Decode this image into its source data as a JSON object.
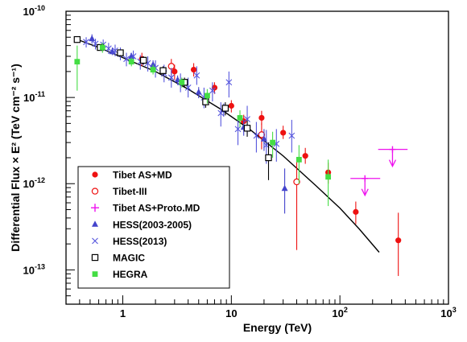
{
  "chart_data": {
    "type": "scatter",
    "xlabel": "Energy (TeV)",
    "ylabel": "Differential Flux × E² (TeV cm⁻² s⁻¹)",
    "xscale": "log",
    "yscale": "log",
    "xlim": [
      0.3,
      1000
    ],
    "ylim": [
      4e-14,
      1e-10
    ],
    "x_ticks": [
      {
        "value": 1,
        "base": "1",
        "exp": ""
      },
      {
        "value": 10,
        "base": "10",
        "exp": ""
      },
      {
        "value": 100,
        "base": "10",
        "exp": "2"
      },
      {
        "value": 1000,
        "base": "10",
        "exp": "3"
      }
    ],
    "y_ticks": [
      {
        "value": 1e-13,
        "base": "10",
        "exp": "-13"
      },
      {
        "value": 1e-12,
        "base": "10",
        "exp": "-12"
      },
      {
        "value": 1e-11,
        "base": "10",
        "exp": "-11"
      },
      {
        "value": 1e-10,
        "base": "10",
        "exp": "-10"
      }
    ],
    "legend_position": "bottom-left",
    "fit_curve": [
      [
        0.4,
        4.6e-11
      ],
      [
        0.6,
        3.8e-11
      ],
      [
        1,
        2.9e-11
      ],
      [
        2,
        2e-11
      ],
      [
        4,
        1.25e-11
      ],
      [
        8,
        7.3e-12
      ],
      [
        15,
        4.2e-12
      ],
      [
        30,
        2.1e-12
      ],
      [
        60,
        9.5e-13
      ],
      [
        100,
        5.2e-13
      ],
      [
        150,
        3e-13
      ],
      [
        230,
        1.6e-13
      ]
    ],
    "series": [
      {
        "name": "Tibet AS+MD",
        "marker": "circle-filled",
        "color": "#ee1111",
        "points": [
          {
            "x": 1.5,
            "y": 2.8e-11,
            "ylo": 2.3e-11,
            "yhi": 3.3e-11
          },
          {
            "x": 3.0,
            "y": 2e-11,
            "ylo": 1.6e-11,
            "yhi": 2.4e-11
          },
          {
            "x": 4.5,
            "y": 2.1e-11,
            "ylo": 1.75e-11,
            "yhi": 2.5e-11
          },
          {
            "x": 7,
            "y": 1.3e-11,
            "ylo": 1.1e-11,
            "yhi": 1.5e-11
          },
          {
            "x": 10,
            "y": 8e-12,
            "ylo": 6.7e-12,
            "yhi": 9.3e-12
          },
          {
            "x": 13,
            "y": 5.3e-12,
            "ylo": 4.4e-12,
            "yhi": 6.3e-12
          },
          {
            "x": 19,
            "y": 5.8e-12,
            "ylo": 4.8e-12,
            "yhi": 7e-12
          },
          {
            "x": 30,
            "y": 3.9e-12,
            "ylo": 3.3e-12,
            "yhi": 4.7e-12
          },
          {
            "x": 48,
            "y": 2.1e-12,
            "ylo": 1.7e-12,
            "yhi": 2.6e-12
          },
          {
            "x": 78,
            "y": 1.35e-12,
            "ylo": 1e-12,
            "yhi": 1.75e-12
          },
          {
            "x": 140,
            "y": 4.7e-13,
            "ylo": 3.4e-13,
            "yhi": 6.2e-13
          },
          {
            "x": 345,
            "y": 2.2e-13,
            "ylo": 8.5e-14,
            "yhi": 4.6e-13
          }
        ]
      },
      {
        "name": "Tibet-III",
        "marker": "circle-open",
        "color": "#ee1111",
        "points": [
          {
            "x": 2.8,
            "y": 2.3e-11,
            "ylo": 1.8e-11,
            "yhi": 2.8e-11
          },
          {
            "x": 19,
            "y": 3.7e-12,
            "ylo": 2.5e-12,
            "yhi": 5e-12
          },
          {
            "x": 40,
            "y": 1.05e-12,
            "ylo": 1.7e-13,
            "yhi": 2e-12
          }
        ]
      },
      {
        "name": "Tibet AS+Proto.MD",
        "marker": "cross-ul",
        "color": "#ee11ee",
        "points": [
          {
            "x": 170,
            "y": 1.15e-12,
            "xlo": 125,
            "xhi": 235,
            "ul": true
          },
          {
            "x": 305,
            "y": 2.5e-12,
            "xlo": 225,
            "xhi": 420,
            "ul": true
          }
        ]
      },
      {
        "name": "HESS(2003-2005)",
        "marker": "triangle",
        "color": "#4444cc",
        "points": [
          {
            "x": 0.52,
            "y": 4.8e-11,
            "ylo": 4.2e-11,
            "yhi": 5.4e-11
          },
          {
            "x": 0.8,
            "y": 3.4e-11,
            "ylo": 3.1e-11,
            "yhi": 3.8e-11
          },
          {
            "x": 1.2,
            "y": 3e-11,
            "ylo": 2.7e-11,
            "yhi": 3.3e-11
          },
          {
            "x": 1.9,
            "y": 2.4e-11,
            "ylo": 2.1e-11,
            "yhi": 2.7e-11
          },
          {
            "x": 3.2,
            "y": 1.6e-11,
            "ylo": 1.4e-11,
            "yhi": 1.8e-11
          },
          {
            "x": 5.0,
            "y": 1.15e-11,
            "ylo": 9.8e-12,
            "yhi": 1.32e-11
          },
          {
            "x": 8.5,
            "y": 7.2e-12,
            "ylo": 6e-12,
            "yhi": 8.5e-12
          },
          {
            "x": 13,
            "y": 4.5e-12,
            "ylo": 3.6e-12,
            "yhi": 5.5e-12
          },
          {
            "x": 20,
            "y": 3.3e-12,
            "ylo": 2.4e-12,
            "yhi": 4.3e-12
          },
          {
            "x": 31,
            "y": 8.8e-13,
            "ylo": 4.5e-13,
            "yhi": 1.5e-12
          }
        ]
      },
      {
        "name": "HESS(2013)",
        "marker": "x",
        "color": "#5555dd",
        "points": [
          {
            "x": 0.46,
            "y": 4.4e-11,
            "ylo": 3.8e-11,
            "yhi": 5e-11
          },
          {
            "x": 0.56,
            "y": 4.2e-11,
            "ylo": 3.6e-11,
            "yhi": 4.8e-11
          },
          {
            "x": 0.66,
            "y": 4.1e-11,
            "ylo": 3.5e-11,
            "yhi": 4.7e-11
          },
          {
            "x": 0.74,
            "y": 3.7e-11,
            "ylo": 3.2e-11,
            "yhi": 4.3e-11
          },
          {
            "x": 0.85,
            "y": 3.5e-11,
            "ylo": 3e-11,
            "yhi": 4.1e-11
          },
          {
            "x": 0.95,
            "y": 3.2e-11,
            "ylo": 2.7e-11,
            "yhi": 3.8e-11
          },
          {
            "x": 1.08,
            "y": 2.8e-11,
            "ylo": 2.3e-11,
            "yhi": 3.3e-11
          },
          {
            "x": 1.25,
            "y": 3e-11,
            "ylo": 2.5e-11,
            "yhi": 3.5e-11
          },
          {
            "x": 1.45,
            "y": 2.6e-11,
            "ylo": 2.1e-11,
            "yhi": 3.1e-11
          },
          {
            "x": 1.7,
            "y": 2.5e-11,
            "ylo": 2e-11,
            "yhi": 3e-11
          },
          {
            "x": 2.0,
            "y": 2.2e-11,
            "ylo": 1.7e-11,
            "yhi": 2.7e-11
          },
          {
            "x": 2.4,
            "y": 1.9e-11,
            "ylo": 1.5e-11,
            "yhi": 2.4e-11
          },
          {
            "x": 2.8,
            "y": 1.7e-11,
            "ylo": 1.3e-11,
            "yhi": 2.2e-11
          },
          {
            "x": 3.4,
            "y": 1.5e-11,
            "ylo": 1.15e-11,
            "yhi": 1.9e-11
          },
          {
            "x": 4.0,
            "y": 1.3e-11,
            "ylo": 1e-11,
            "yhi": 1.7e-11
          },
          {
            "x": 4.8,
            "y": 1.8e-11,
            "ylo": 1.4e-11,
            "yhi": 2.3e-11
          },
          {
            "x": 5.6,
            "y": 1e-11,
            "ylo": 7.5e-12,
            "yhi": 1.3e-11
          },
          {
            "x": 6.7,
            "y": 1.2e-11,
            "ylo": 9e-12,
            "yhi": 1.5e-11
          },
          {
            "x": 8.0,
            "y": 6.6e-12,
            "ylo": 4.6e-12,
            "yhi": 8.8e-12
          },
          {
            "x": 9.5,
            "y": 1.5e-11,
            "ylo": 1e-11,
            "yhi": 2e-11
          },
          {
            "x": 11.5,
            "y": 4.3e-12,
            "ylo": 2.8e-12,
            "yhi": 6e-12
          },
          {
            "x": 14,
            "y": 5.6e-12,
            "ylo": 3.6e-12,
            "yhi": 8e-12
          },
          {
            "x": 17,
            "y": 3.6e-12,
            "ylo": 2.3e-12,
            "yhi": 5.2e-12
          },
          {
            "x": 21,
            "y": 2.8e-12,
            "ylo": 1.7e-12,
            "yhi": 4.2e-12
          },
          {
            "x": 26,
            "y": 2.9e-12,
            "ylo": 1.8e-12,
            "yhi": 4.3e-12
          },
          {
            "x": 36,
            "y": 3.6e-12,
            "ylo": 2.3e-12,
            "yhi": 5.5e-12
          }
        ]
      },
      {
        "name": "MAGIC",
        "marker": "square-open",
        "color": "#000000",
        "points": [
          {
            "x": 0.38,
            "y": 4.7e-11,
            "ylo": 4.3e-11,
            "yhi": 5.1e-11
          },
          {
            "x": 0.62,
            "y": 3.8e-11,
            "ylo": 3.5e-11,
            "yhi": 4.1e-11
          },
          {
            "x": 0.95,
            "y": 3.3e-11,
            "ylo": 3e-11,
            "yhi": 3.6e-11
          },
          {
            "x": 1.55,
            "y": 2.7e-11,
            "ylo": 2.4e-11,
            "yhi": 3e-11
          },
          {
            "x": 2.35,
            "y": 2.05e-11,
            "ylo": 1.8e-11,
            "yhi": 2.3e-11
          },
          {
            "x": 3.7,
            "y": 1.5e-11,
            "ylo": 1.3e-11,
            "yhi": 1.7e-11
          },
          {
            "x": 5.8,
            "y": 8.9e-12,
            "ylo": 7.6e-12,
            "yhi": 1.02e-11
          },
          {
            "x": 8.8,
            "y": 7.5e-12,
            "ylo": 6.2e-12,
            "yhi": 8.8e-12
          },
          {
            "x": 14,
            "y": 4.4e-12,
            "ylo": 3.5e-12,
            "yhi": 5.4e-12
          },
          {
            "x": 22,
            "y": 2e-12,
            "ylo": 1.1e-12,
            "yhi": 3e-12
          }
        ]
      },
      {
        "name": "HEGRA",
        "marker": "square-filled",
        "color": "#44dd44",
        "points": [
          {
            "x": 0.38,
            "y": 2.6e-11,
            "ylo": 1.2e-11,
            "yhi": 4e-11
          },
          {
            "x": 0.65,
            "y": 3.8e-11,
            "ylo": 3.3e-11,
            "yhi": 4.3e-11
          },
          {
            "x": 1.2,
            "y": 2.6e-11,
            "ylo": 2.3e-11,
            "yhi": 2.9e-11
          },
          {
            "x": 1.9,
            "y": 2.1e-11,
            "ylo": 1.85e-11,
            "yhi": 2.4e-11
          },
          {
            "x": 3.5,
            "y": 1.5e-11,
            "ylo": 1.3e-11,
            "yhi": 1.7e-11
          },
          {
            "x": 6,
            "y": 1.05e-11,
            "ylo": 8.5e-12,
            "yhi": 1.25e-11
          },
          {
            "x": 12,
            "y": 5.8e-12,
            "ylo": 4.5e-12,
            "yhi": 7.1e-12
          },
          {
            "x": 24,
            "y": 3e-12,
            "ylo": 2e-12,
            "yhi": 4e-12
          },
          {
            "x": 42,
            "y": 1.9e-12,
            "ylo": 1e-12,
            "yhi": 2.8e-12
          },
          {
            "x": 78,
            "y": 1.2e-12,
            "ylo": 5.5e-13,
            "yhi": 1.9e-12
          }
        ]
      }
    ]
  }
}
